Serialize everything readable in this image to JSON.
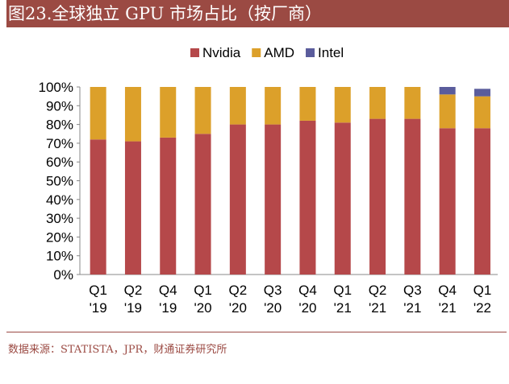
{
  "title": "图23.全球独立 GPU 市场占比（按厂商）",
  "source": "数据来源：STATISTA，JPR，财通证券研究所",
  "chart_data": {
    "type": "bar",
    "stacked": true,
    "categories": [
      [
        "Q1",
        "'19"
      ],
      [
        "Q2",
        "'19"
      ],
      [
        "Q4",
        "'19"
      ],
      [
        "Q1",
        "'20"
      ],
      [
        "Q2",
        "'20"
      ],
      [
        "Q3",
        "'20"
      ],
      [
        "Q4",
        "'20"
      ],
      [
        "Q1",
        "'21"
      ],
      [
        "Q2",
        "'21"
      ],
      [
        "Q3",
        "'21"
      ],
      [
        "Q4",
        "'21"
      ],
      [
        "Q1",
        "'22"
      ]
    ],
    "series": [
      {
        "name": "Nvidia",
        "color": "#b5484a",
        "values": [
          72,
          71,
          73,
          75,
          80,
          80,
          82,
          81,
          83,
          83,
          78,
          78
        ]
      },
      {
        "name": "AMD",
        "color": "#dca02a",
        "values": [
          28,
          29,
          27,
          25,
          20,
          20,
          18,
          19,
          17,
          17,
          18,
          17
        ]
      },
      {
        "name": "Intel",
        "color": "#5a5c9c",
        "values": [
          0,
          0,
          0,
          0,
          0,
          0,
          0,
          0,
          0,
          0,
          4,
          4
        ]
      }
    ],
    "ylim": [
      0,
      100
    ],
    "yticks": [
      "0%",
      "10%",
      "20%",
      "30%",
      "40%",
      "50%",
      "60%",
      "70%",
      "80%",
      "90%",
      "100%"
    ],
    "legend": "top",
    "grid": false
  }
}
